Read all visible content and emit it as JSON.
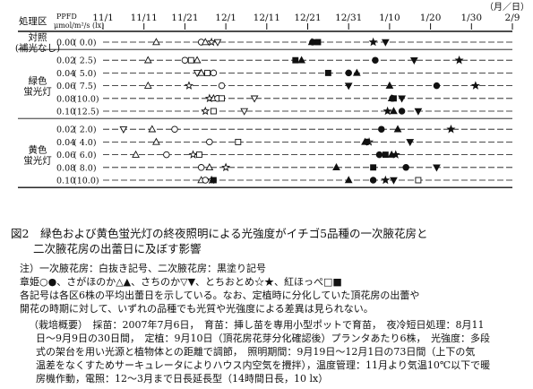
{
  "figure": {
    "header": {
      "label": "処理区",
      "ppfd_label": "PPFD",
      "ppfd_unit": "μmol/m²/s (lx)",
      "date_unit": "（月／日）"
    },
    "dates": [
      {
        "label": "11/1",
        "day": 0
      },
      {
        "label": "11/11",
        "day": 10
      },
      {
        "label": "11/21",
        "day": 20
      },
      {
        "label": "12/1",
        "day": 30
      },
      {
        "label": "12/11",
        "day": 40
      },
      {
        "label": "12/21",
        "day": 50
      },
      {
        "label": "12/31",
        "day": 60
      },
      {
        "label": "1/10",
        "day": 70
      },
      {
        "label": "1/20",
        "day": 80
      },
      {
        "label": "1/30",
        "day": 90
      },
      {
        "label": "2/9",
        "day": 100
      }
    ],
    "groups": [
      {
        "name": "対照",
        "sub": "(補光なし)",
        "rows": [
          {
            "ppfd": "0.00",
            "lx": "(  0.0)",
            "marks": [
              {
                "s": "utri",
                "d": 13
              },
              {
                "s": "circ",
                "d": 24
              },
              {
                "s": "utrib",
                "d": 25
              },
              {
                "s": "star",
                "d": 26.5
              },
              {
                "s": "dtri",
                "d": 28
              },
              {
                "s": "utrif",
                "d": 51
              },
              {
                "s": "circf",
                "d": 51.2
              },
              {
                "s": "sqf",
                "d": 52.5
              },
              {
                "s": "starf",
                "d": 66
              },
              {
                "s": "dtrif",
                "d": 69
              }
            ]
          }
        ]
      },
      {
        "name": "緑色",
        "sub": "蛍光灯",
        "rows": [
          {
            "ppfd": "0.02",
            "lx": "(  2.5)",
            "marks": [
              {
                "s": "utri",
                "d": 11
              },
              {
                "s": "circ",
                "d": 20
              },
              {
                "s": "sq",
                "d": 21.5
              },
              {
                "s": "utri",
                "d": 23
              },
              {
                "s": "sqf",
                "d": 47
              },
              {
                "s": "utrif",
                "d": 48.5
              },
              {
                "s": "circf",
                "d": 66.5
              },
              {
                "s": "dtrif",
                "d": 76
              },
              {
                "s": "starf",
                "d": 87
              }
            ]
          },
          {
            "ppfd": "0.04",
            "lx": "(  5.0)",
            "marks": [
              {
                "s": "dtri",
                "d": 23
              },
              {
                "s": "utri",
                "d": 24
              },
              {
                "s": "sq",
                "d": 25.5
              },
              {
                "s": "circ",
                "d": 27
              },
              {
                "s": "sqf",
                "d": 55
              },
              {
                "s": "circf",
                "d": 60
              },
              {
                "s": "utrif",
                "d": 62
              }
            ]
          },
          {
            "ppfd": "0.06",
            "lx": "(  7.5)",
            "marks": [
              {
                "s": "utri",
                "d": 11
              },
              {
                "s": "star",
                "d": 21
              },
              {
                "s": "circ",
                "d": 29
              },
              {
                "s": "dtrif",
                "d": 60
              },
              {
                "s": "utrif",
                "d": 70
              },
              {
                "s": "circf",
                "d": 81.5
              },
              {
                "s": "starf",
                "d": 91
              }
            ]
          },
          {
            "ppfd": "0.08",
            "lx": "(10.0)",
            "marks": [
              {
                "s": "star",
                "d": 26
              },
              {
                "s": "utri",
                "d": 27
              },
              {
                "s": "circ",
                "d": 28
              },
              {
                "s": "sq",
                "d": 29
              },
              {
                "s": "dtri",
                "d": 37
              },
              {
                "s": "utrif",
                "d": 70.5
              },
              {
                "s": "sqf",
                "d": 71
              },
              {
                "s": "circf",
                "d": 70.7
              },
              {
                "s": "dtrif",
                "d": 73
              }
            ]
          },
          {
            "ppfd": "0.10",
            "lx": "(12.5)",
            "marks": [
              {
                "s": "star",
                "d": 25
              },
              {
                "s": "sq",
                "d": 27
              },
              {
                "s": "dtri",
                "d": 34.5
              },
              {
                "s": "starf",
                "d": 69.5
              },
              {
                "s": "utrif",
                "d": 71
              },
              {
                "s": "circf",
                "d": 73
              },
              {
                "s": "dtrif",
                "d": 77
              }
            ]
          }
        ]
      },
      {
        "name": "黄色",
        "sub": "蛍光灯",
        "rows": [
          {
            "ppfd": "0.02",
            "lx": "(  2.0)",
            "marks": [
              {
                "s": "dtri",
                "d": 5
              },
              {
                "s": "utri",
                "d": 12
              },
              {
                "s": "circ",
                "d": 17.5
              },
              {
                "s": "circf",
                "d": 68
              },
              {
                "s": "utrif",
                "d": 72
              },
              {
                "s": "starf",
                "d": 85
              }
            ]
          },
          {
            "ppfd": "0.04",
            "lx": "(  4.0)",
            "marks": [
              {
                "s": "utri",
                "d": 13
              },
              {
                "s": "circ",
                "d": 26
              },
              {
                "s": "sq",
                "d": 33
              },
              {
                "s": "star",
                "d": 65
              },
              {
                "s": "circf",
                "d": 64.5
              },
              {
                "s": "utrif",
                "d": 64
              },
              {
                "s": "dtrif",
                "d": 75
              }
            ]
          },
          {
            "ppfd": "0.06",
            "lx": "(  6.0)",
            "marks": [
              {
                "s": "utri",
                "d": 8
              },
              {
                "s": "circ",
                "d": 15.5
              },
              {
                "s": "star",
                "d": 22
              },
              {
                "s": "sq",
                "d": 23.5
              },
              {
                "s": "circf",
                "d": 67.5
              },
              {
                "s": "sqf",
                "d": 69
              },
              {
                "s": "utrif",
                "d": 70.5
              },
              {
                "s": "starf",
                "d": 71.5
              }
            ]
          },
          {
            "ppfd": "0.08",
            "lx": "(  8.0)",
            "marks": [
              {
                "s": "circ",
                "d": 24
              },
              {
                "s": "utri",
                "d": 26
              },
              {
                "s": "star",
                "d": 30
              },
              {
                "s": "utrif",
                "d": 57
              },
              {
                "s": "sqf",
                "d": 66
              },
              {
                "s": "circf",
                "d": 74
              },
              {
                "s": "dtrif",
                "d": 81.5
              }
            ]
          },
          {
            "ppfd": "0.10",
            "lx": "(10.0)",
            "marks": [
              {
                "s": "utri",
                "d": 24
              },
              {
                "s": "circ",
                "d": 25
              },
              {
                "s": "star",
                "d": 26.5
              },
              {
                "s": "sqf",
                "d": 27
              },
              {
                "s": "utrif",
                "d": 60
              },
              {
                "s": "circf",
                "d": 66
              },
              {
                "s": "starf",
                "d": 69
              },
              {
                "s": "dtrif",
                "d": 71
              },
              {
                "s": "sq",
                "d": 77
              }
            ]
          }
        ]
      }
    ]
  },
  "caption": {
    "line1": "図2　緑色および黄色蛍光灯の終夜照明による光強度がイチゴ5品種の一次腋花房と",
    "line2": "二次腋花房の出蕾日に及ぼす影響"
  },
  "notes": {
    "line1": "注）一次腋花房：白抜き記号、二次腋花房：黒塗り記号",
    "line2": "章姫○●、さがほのか△▲、さちのか▽▼、とちおとめ☆★、紅ほっぺ□■",
    "line3": "各記号は各区6株の平均出蕾日を示している。なお、定植時に分化していた頂花房の出蕾や",
    "line4": "開花の時期に対して、いずれの品種でも光質や光強度による差異は見られない。"
  },
  "outline": {
    "line1": "（栽培概要）　採苗：2007年7月6日，　育苗：挿し苗を専用小型ポットで育苗，　夜冷短日処理：8月11",
    "line2": "日～9月9日の30日間，　定植：9月10日（頂花房花芽分化確認後）プランタあたり6株，　光強度：多段",
    "line3": "式の架台を用い光源と植物体との距離で調節，　照明期間：9月19日～12月1日の73日間（上下の気",
    "line4": "温差をなくすためサーキュレータによりハウス内空気を攪拌），温度管理：11月より気温10℃以下で暖",
    "line5": "房機作動，電照：12～3月まで日長延長型（14時間日長，10 lx）"
  }
}
